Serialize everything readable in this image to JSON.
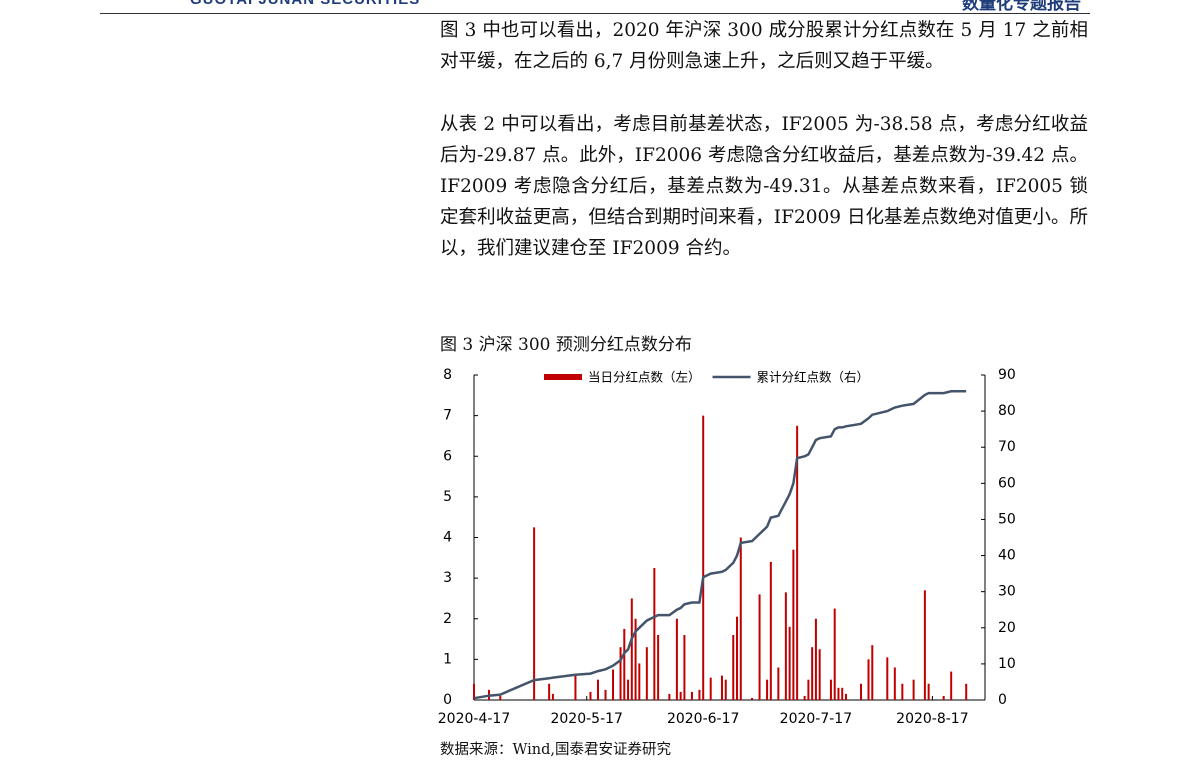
{
  "header": {
    "logo_text": "GUOTAI JUNAN SECURITIES",
    "report_type": "数量化专题报告"
  },
  "paragraphs": [
    "图 3 中也可以看出，2020 年沪深 300 成分股累计分红点数在 5 月 17 之前相对平缓，在之后的 6,7 月份则急速上升，之后则又趋于平缓。",
    "从表 2 中可以看出，考虑目前基差状态，IF2005 为-38.58 点，考虑分红收益后为-29.87 点。此外，IF2006 考虑隐含分红收益后，基差点数为-39.42 点。IF2009 考虑隐含分红后，基差点数为-49.31。从基差点数来看，IF2005 锁定套利收益更高，但结合到期时间来看，IF2009 日化基差点数绝对值更小。所以，我们建议建仓至 IF2009 合约。"
  ],
  "chart_data": {
    "type": "combo",
    "title": "图 3  沪深 300 预测分红点数分布",
    "source": "数据来源：Wind,国泰君安证券研究",
    "x": [
      "2020-4-17",
      "2020-4-21",
      "2020-4-24",
      "2020-5-3",
      "2020-5-7",
      "2020-5-8",
      "2020-5-14",
      "2020-5-18",
      "2020-5-20",
      "2020-5-22",
      "2020-5-24",
      "2020-5-26",
      "2020-5-27",
      "2020-5-28",
      "2020-5-29",
      "2020-5-30",
      "2020-5-31",
      "2020-6-2",
      "2020-6-4",
      "2020-6-5",
      "2020-6-8",
      "2020-6-10",
      "2020-6-11",
      "2020-6-12",
      "2020-6-14",
      "2020-6-16",
      "2020-6-17",
      "2020-6-19",
      "2020-6-22",
      "2020-6-23",
      "2020-6-25",
      "2020-6-26",
      "2020-6-27",
      "2020-6-30",
      "2020-7-2",
      "2020-7-4",
      "2020-7-5",
      "2020-7-7",
      "2020-7-9",
      "2020-7-10",
      "2020-7-11",
      "2020-7-12",
      "2020-7-14",
      "2020-7-15",
      "2020-7-16",
      "2020-7-17",
      "2020-7-18",
      "2020-7-21",
      "2020-7-22",
      "2020-7-23",
      "2020-7-24",
      "2020-7-25",
      "2020-7-29",
      "2020-7-31",
      "2020-8-1",
      "2020-8-5",
      "2020-8-7",
      "2020-8-9",
      "2020-8-12",
      "2020-8-15",
      "2020-8-16",
      "2020-8-20",
      "2020-8-22",
      "2020-8-26"
    ],
    "series": [
      {
        "name": "当日分红点数（左）",
        "type": "bar",
        "color": "#c00000",
        "values": [
          0.4,
          0.25,
          0.1,
          4.25,
          0.4,
          0.15,
          0.6,
          0.2,
          0.5,
          0.25,
          0.75,
          1.3,
          1.75,
          0.5,
          2.5,
          2,
          0.9,
          1.3,
          3.25,
          1.6,
          0.15,
          2,
          0.2,
          1.6,
          0.2,
          0.25,
          7,
          0.55,
          0.6,
          0.5,
          1.6,
          2.05,
          4,
          0.05,
          2.6,
          0.5,
          3.4,
          0.8,
          2.65,
          1.8,
          3.7,
          6.75,
          0.1,
          0.5,
          1.3,
          2,
          1.25,
          0.5,
          2.25,
          0.3,
          0.3,
          0.15,
          0.4,
          1,
          1.35,
          1.05,
          0.8,
          0.4,
          0.5,
          2.7,
          0.4,
          0.1,
          0.7,
          0.4
        ]
      },
      {
        "name": "累计分红点数（右）",
        "type": "line",
        "axis": "y2",
        "color": "#44546a",
        "values": [
          0.5,
          1.2,
          1.5,
          5.5,
          6,
          6.2,
          7,
          7.3,
          8,
          8.5,
          9.5,
          11,
          13,
          14,
          17,
          19,
          20,
          22,
          23,
          23.5,
          23.5,
          25,
          25.5,
          26.5,
          27,
          27,
          34,
          35,
          35.5,
          36,
          38,
          40,
          43.5,
          44,
          46,
          48,
          50.5,
          51,
          55,
          57,
          60,
          67,
          67.5,
          68,
          70,
          72,
          72.5,
          73,
          75,
          75.5,
          75.5,
          75.8,
          76.5,
          78,
          79,
          80,
          81,
          81.5,
          82,
          84.5,
          85,
          85,
          85.5,
          85.5
        ]
      }
    ],
    "xlim": [
      "2020-4-17",
      "2020-8-31"
    ],
    "xticks": [
      "2020-4-17",
      "2020-5-17",
      "2020-6-17",
      "2020-7-17",
      "2020-8-17"
    ],
    "ylim": [
      0,
      8
    ],
    "yticks": [
      0,
      1,
      2,
      3,
      4,
      5,
      6,
      7,
      8
    ],
    "y2lim": [
      0,
      90
    ],
    "y2ticks": [
      0,
      10,
      20,
      30,
      40,
      50,
      60,
      70,
      80,
      90
    ],
    "legend": "top"
  }
}
